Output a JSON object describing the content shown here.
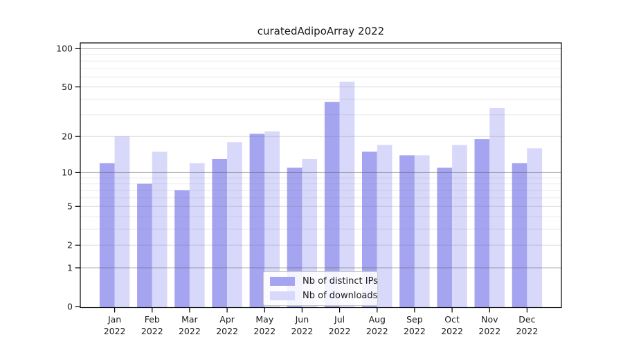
{
  "chart_data": {
    "type": "bar",
    "title": "curatedAdipoArray 2022",
    "categories": [
      "Jan",
      "Feb",
      "Mar",
      "Apr",
      "May",
      "Jun",
      "Jul",
      "Aug",
      "Sep",
      "Oct",
      "Nov",
      "Dec"
    ],
    "x_tick_year": "2022",
    "series": [
      {
        "name": "Nb of distinct IPs",
        "color": "#a4a4f0",
        "values": [
          12,
          8,
          7,
          13,
          21,
          11,
          38,
          15,
          14,
          11,
          19,
          12
        ]
      },
      {
        "name": "Nb of downloads",
        "color": "#d8d8fa",
        "values": [
          20,
          15,
          12,
          18,
          22,
          13,
          55,
          17,
          14,
          17,
          34,
          16
        ]
      }
    ],
    "yscale": "log1p",
    "ylim": [
      0,
      112
    ],
    "yticks": [
      0,
      1,
      2,
      5,
      10,
      20,
      50,
      100
    ],
    "power_ticks": [
      1,
      10,
      100
    ],
    "light_labeled_ticks": [
      2,
      5,
      20,
      50
    ],
    "minor_gridlines": [
      3,
      4,
      6,
      7,
      8,
      9,
      30,
      40,
      60,
      70,
      80,
      90
    ],
    "grid": true,
    "legend_position": "bottom-center",
    "colors": {
      "axis": "#000000",
      "text": "#1a1a1a",
      "grid_power": "rgba(90,90,90,0.50)",
      "grid_labeled": "rgba(120,120,120,0.28)",
      "grid_minor": "rgba(120,120,120,0.15)",
      "legend_border": "#c9c9c9",
      "legend_background": "rgba(255,255,255,0.88)"
    }
  }
}
